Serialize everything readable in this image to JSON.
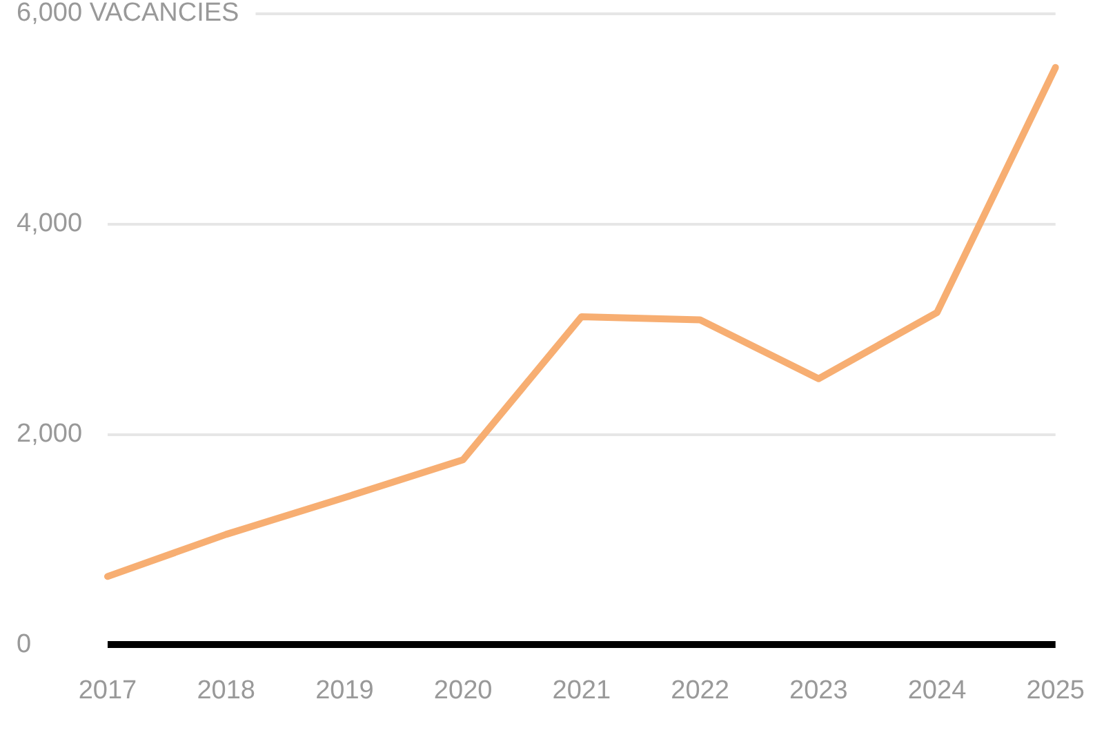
{
  "chart_data": {
    "type": "line",
    "categories": [
      "2017",
      "2018",
      "2019",
      "2020",
      "2021",
      "2022",
      "2023",
      "2024",
      "2025"
    ],
    "series": [
      {
        "color": "#f7ae72",
        "values": [
          650,
          1050,
          1400,
          1760,
          3120,
          3090,
          2530,
          3160,
          5490
        ]
      }
    ],
    "ylim": [
      0,
      6000
    ],
    "yticks": [
      0,
      {
        "value": 2000,
        "label": "2,000"
      },
      {
        "value": 4000,
        "label": "4,000"
      },
      {
        "value": 6000,
        "label": "6,000 VACANCIES"
      }
    ],
    "grid": "y",
    "legend": false,
    "marker": "none",
    "line_style": "solid"
  }
}
